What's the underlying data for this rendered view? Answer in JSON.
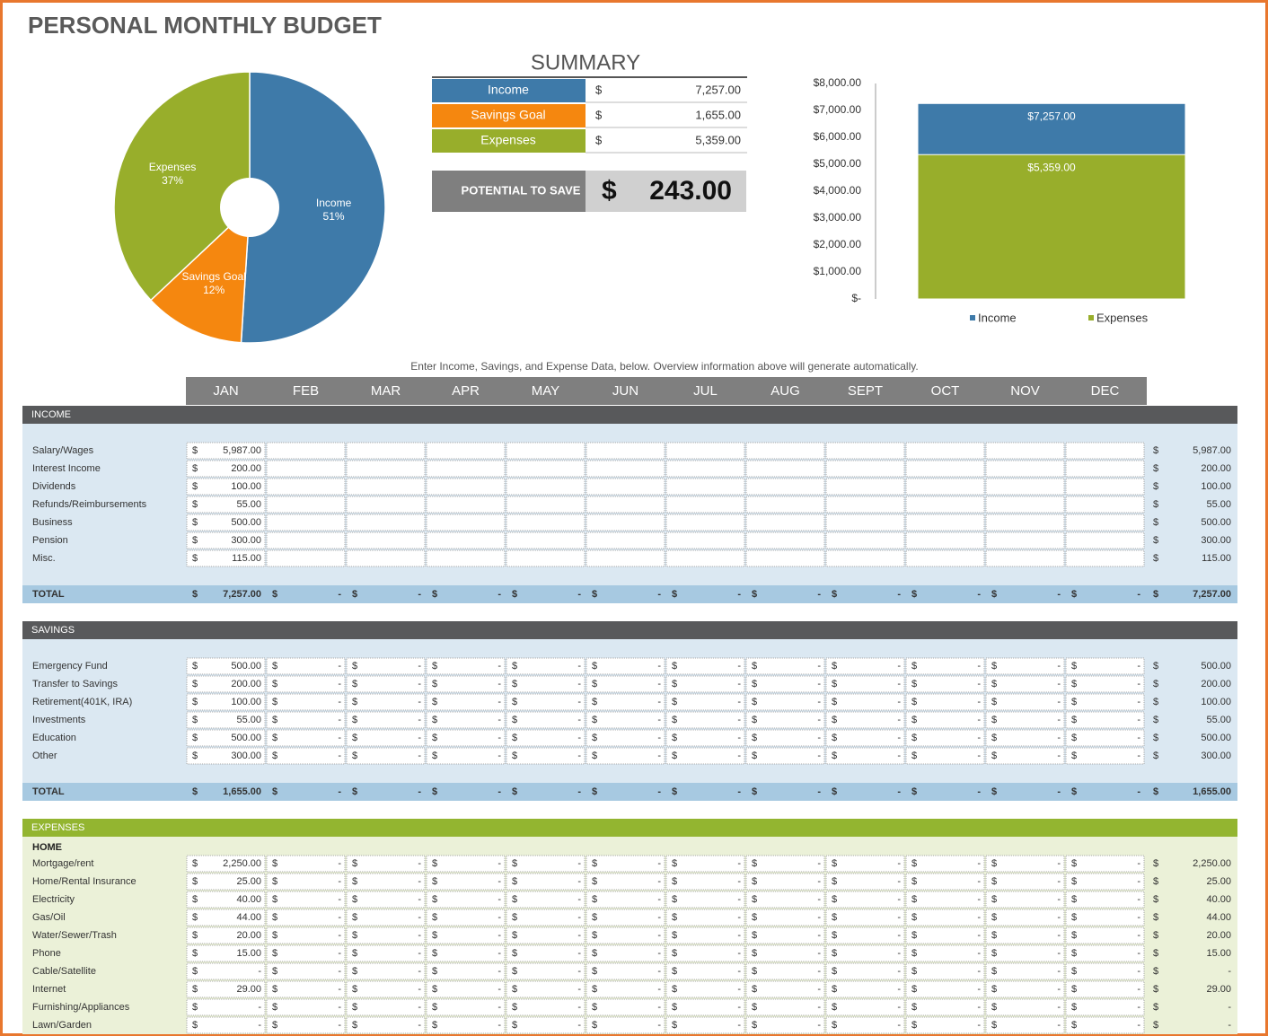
{
  "title": "PERSONAL MONTHLY BUDGET",
  "chart_data": [
    {
      "type": "pie",
      "categories": [
        "Income",
        "Savings Goal",
        "Expenses"
      ],
      "values": [
        51,
        12,
        37
      ],
      "value_labels": [
        "51%",
        "12%",
        "37%"
      ],
      "colors": [
        "#3e7aa9",
        "#f5870f",
        "#98ae2b"
      ]
    },
    {
      "type": "bar",
      "categories": [
        null
      ],
      "series": [
        {
          "name": "Income",
          "color": "#3e7aa9",
          "values": [
            7257
          ],
          "value_labels": [
            "$7,257.00"
          ]
        },
        {
          "name": "Expenses",
          "color": "#98ae2b",
          "values": [
            5359
          ],
          "value_labels": [
            "$5,359.00"
          ]
        }
      ],
      "ylim": [
        0,
        8000
      ],
      "yticks": [
        {
          "value": 0,
          "label": "$-"
        },
        {
          "value": 1000,
          "label": "$1,000.00"
        },
        {
          "value": 2000,
          "label": "$2,000.00"
        },
        {
          "value": 3000,
          "label": "$3,000.00"
        },
        {
          "value": 4000,
          "label": "$4,000.00"
        },
        {
          "value": 5000,
          "label": "$5,000.00"
        },
        {
          "value": 6000,
          "label": "$6,000.00"
        },
        {
          "value": 7000,
          "label": "$7,000.00"
        },
        {
          "value": 8000,
          "label": "$8,000.00"
        }
      ],
      "legend": "bottom"
    }
  ],
  "summary": {
    "title": "SUMMARY",
    "currency": "$",
    "rows": [
      {
        "label": "Income",
        "value": "7,257.00",
        "color": "#3e7aa9"
      },
      {
        "label": "Savings Goal",
        "value": "1,655.00",
        "color": "#f5870f"
      },
      {
        "label": "Expenses",
        "value": "5,359.00",
        "color": "#98ae2b"
      }
    ],
    "potential": {
      "label": "POTENTIAL TO SAVE",
      "currency": "$",
      "value": "243.00"
    }
  },
  "instructions": "Enter Income, Savings, and Expense Data, below.  Overview information above will generate automatically.",
  "table": {
    "currency": "$",
    "months": [
      "JAN",
      "FEB",
      "MAR",
      "APR",
      "MAY",
      "JUN",
      "JUL",
      "AUG",
      "SEPT",
      "OCT",
      "NOV",
      "DEC"
    ],
    "sections": [
      {
        "title": "INCOME",
        "color": "#58595b",
        "background": "#dbe8f2",
        "rows": [
          {
            "label": "Salary/Wages",
            "cells": [
              "5,987.00",
              null,
              null,
              null,
              null,
              null,
              null,
              null,
              null,
              null,
              null,
              null
            ],
            "total": "5,987.00"
          },
          {
            "label": "Interest Income",
            "cells": [
              "200.00",
              null,
              null,
              null,
              null,
              null,
              null,
              null,
              null,
              null,
              null,
              null
            ],
            "total": "200.00"
          },
          {
            "label": "Dividends",
            "cells": [
              "100.00",
              null,
              null,
              null,
              null,
              null,
              null,
              null,
              null,
              null,
              null,
              null
            ],
            "total": "100.00"
          },
          {
            "label": "Refunds/Reimbursements",
            "cells": [
              "55.00",
              null,
              null,
              null,
              null,
              null,
              null,
              null,
              null,
              null,
              null,
              null
            ],
            "total": "55.00"
          },
          {
            "label": "Business",
            "cells": [
              "500.00",
              null,
              null,
              null,
              null,
              null,
              null,
              null,
              null,
              null,
              null,
              null
            ],
            "total": "500.00"
          },
          {
            "label": "Pension",
            "cells": [
              "300.00",
              null,
              null,
              null,
              null,
              null,
              null,
              null,
              null,
              null,
              null,
              null
            ],
            "total": "300.00"
          },
          {
            "label": "Misc.",
            "cells": [
              "115.00",
              null,
              null,
              null,
              null,
              null,
              null,
              null,
              null,
              null,
              null,
              null
            ],
            "total": "115.00"
          }
        ],
        "total_row": {
          "label": "TOTAL",
          "cells": [
            "7,257.00",
            "-",
            "-",
            "-",
            "-",
            "-",
            "-",
            "-",
            "-",
            "-",
            "-",
            "-"
          ],
          "total": "7,257.00"
        }
      },
      {
        "title": "SAVINGS",
        "color": "#58595b",
        "background": "#dbe8f2",
        "rows": [
          {
            "label": "Emergency Fund",
            "cells": [
              "500.00",
              "-",
              "-",
              "-",
              "-",
              "-",
              "-",
              "-",
              "-",
              "-",
              "-",
              "-"
            ],
            "total": "500.00"
          },
          {
            "label": "Transfer to Savings",
            "cells": [
              "200.00",
              "-",
              "-",
              "-",
              "-",
              "-",
              "-",
              "-",
              "-",
              "-",
              "-",
              "-"
            ],
            "total": "200.00"
          },
          {
            "label": "Retirement(401K, IRA)",
            "cells": [
              "100.00",
              "-",
              "-",
              "-",
              "-",
              "-",
              "-",
              "-",
              "-",
              "-",
              "-",
              "-"
            ],
            "total": "100.00"
          },
          {
            "label": "Investments",
            "cells": [
              "55.00",
              "-",
              "-",
              "-",
              "-",
              "-",
              "-",
              "-",
              "-",
              "-",
              "-",
              "-"
            ],
            "total": "55.00"
          },
          {
            "label": "Education",
            "cells": [
              "500.00",
              "-",
              "-",
              "-",
              "-",
              "-",
              "-",
              "-",
              "-",
              "-",
              "-",
              "-"
            ],
            "total": "500.00"
          },
          {
            "label": "Other",
            "cells": [
              "300.00",
              "-",
              "-",
              "-",
              "-",
              "-",
              "-",
              "-",
              "-",
              "-",
              "-",
              "-"
            ],
            "total": "300.00"
          }
        ],
        "total_row": {
          "label": "TOTAL",
          "cells": [
            "1,655.00",
            "-",
            "-",
            "-",
            "-",
            "-",
            "-",
            "-",
            "-",
            "-",
            "-",
            "-"
          ],
          "total": "1,655.00"
        }
      },
      {
        "title": "EXPENSES",
        "color": "#93b530",
        "background": "#ebf1d8",
        "subtitle": "HOME",
        "rows": [
          {
            "label": "Mortgage/rent",
            "cells": [
              "2,250.00",
              "-",
              "-",
              "-",
              "-",
              "-",
              "-",
              "-",
              "-",
              "-",
              "-",
              "-"
            ],
            "total": "2,250.00"
          },
          {
            "label": "Home/Rental Insurance",
            "cells": [
              "25.00",
              "-",
              "-",
              "-",
              "-",
              "-",
              "-",
              "-",
              "-",
              "-",
              "-",
              "-"
            ],
            "total": "25.00"
          },
          {
            "label": "Electricity",
            "cells": [
              "40.00",
              "-",
              "-",
              "-",
              "-",
              "-",
              "-",
              "-",
              "-",
              "-",
              "-",
              "-"
            ],
            "total": "40.00"
          },
          {
            "label": "Gas/Oil",
            "cells": [
              "44.00",
              "-",
              "-",
              "-",
              "-",
              "-",
              "-",
              "-",
              "-",
              "-",
              "-",
              "-"
            ],
            "total": "44.00"
          },
          {
            "label": "Water/Sewer/Trash",
            "cells": [
              "20.00",
              "-",
              "-",
              "-",
              "-",
              "-",
              "-",
              "-",
              "-",
              "-",
              "-",
              "-"
            ],
            "total": "20.00"
          },
          {
            "label": "Phone",
            "cells": [
              "15.00",
              "-",
              "-",
              "-",
              "-",
              "-",
              "-",
              "-",
              "-",
              "-",
              "-",
              "-"
            ],
            "total": "15.00"
          },
          {
            "label": "Cable/Satellite",
            "cells": [
              "-",
              "-",
              "-",
              "-",
              "-",
              "-",
              "-",
              "-",
              "-",
              "-",
              "-",
              "-"
            ],
            "total": "-"
          },
          {
            "label": "Internet",
            "cells": [
              "29.00",
              "-",
              "-",
              "-",
              "-",
              "-",
              "-",
              "-",
              "-",
              "-",
              "-",
              "-"
            ],
            "total": "29.00"
          },
          {
            "label": "Furnishing/Appliances",
            "cells": [
              "-",
              "-",
              "-",
              "-",
              "-",
              "-",
              "-",
              "-",
              "-",
              "-",
              "-",
              "-"
            ],
            "total": "-"
          },
          {
            "label": "Lawn/Garden",
            "cells": [
              "-",
              "-",
              "-",
              "-",
              "-",
              "-",
              "-",
              "-",
              "-",
              "-",
              "-",
              "-"
            ],
            "total": "-"
          }
        ]
      }
    ]
  }
}
